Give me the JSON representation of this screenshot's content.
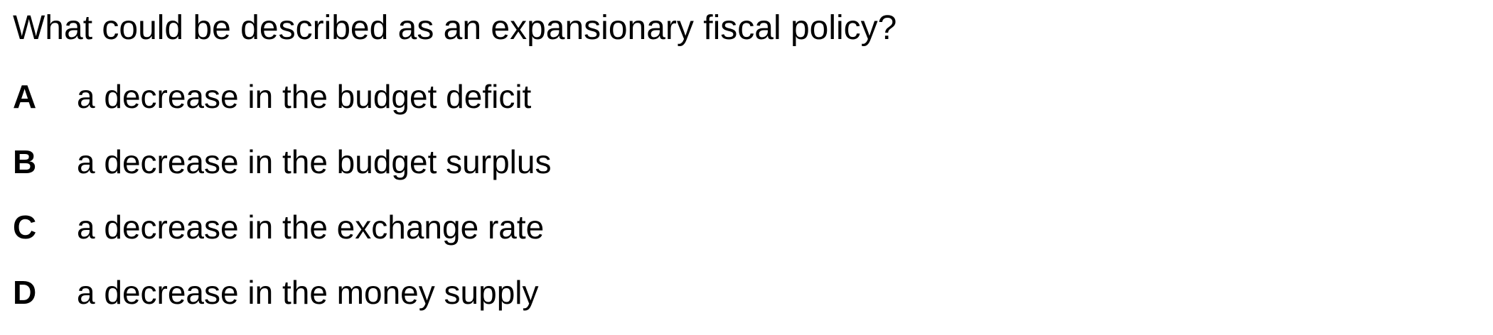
{
  "question": {
    "text": "What could be described as an expansionary fiscal policy?"
  },
  "options": [
    {
      "letter": "A",
      "text": "a decrease in the budget deficit"
    },
    {
      "letter": "B",
      "text": "a decrease in the budget surplus"
    },
    {
      "letter": "C",
      "text": "a decrease in the exchange rate"
    },
    {
      "letter": "D",
      "text": "a decrease in the money supply"
    }
  ]
}
